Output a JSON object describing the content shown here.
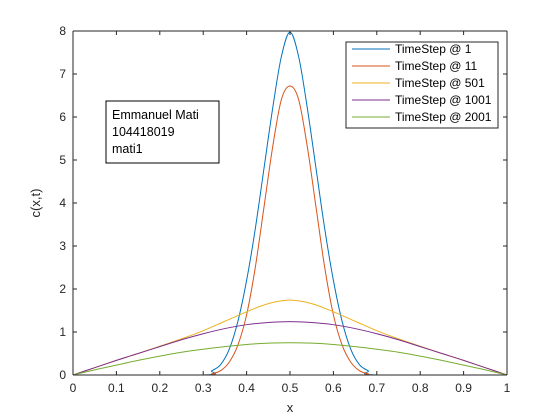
{
  "chart_data": {
    "type": "line",
    "title": "",
    "xlabel": "x",
    "ylabel": "c(x,t)",
    "xlim": [
      0,
      1
    ],
    "ylim": [
      0,
      8
    ],
    "xticks": [
      0,
      0.1,
      0.2,
      0.3,
      0.4,
      0.5,
      0.6,
      0.7,
      0.8,
      0.9,
      1
    ],
    "xtick_labels": [
      "0",
      "0.1",
      "0.2",
      "0.3",
      "0.4",
      "0.5",
      "0.6",
      "0.7",
      "0.8",
      "0.9",
      "1"
    ],
    "yticks": [
      0,
      1,
      2,
      3,
      4,
      5,
      6,
      7,
      8
    ],
    "ytick_labels": [
      "0",
      "1",
      "2",
      "3",
      "4",
      "5",
      "6",
      "7",
      "8"
    ],
    "grid": false,
    "legend_position": "top-right",
    "annotation": {
      "lines": [
        "Emmanuel Mati",
        "104418019",
        "mati1"
      ],
      "position": "upper-left"
    },
    "series": [
      {
        "name": "TimeStep @ 1",
        "color": "#0072BD",
        "x": [
          0,
          0.3,
          0.32,
          0.34,
          0.36,
          0.38,
          0.4,
          0.42,
          0.44,
          0.46,
          0.48,
          0.5,
          0.52,
          0.54,
          0.56,
          0.58,
          0.6,
          0.62,
          0.64,
          0.66,
          0.68,
          0.7,
          1
        ],
        "y": [
          0,
          0,
          0.1,
          0.24,
          0.6,
          1.25,
          2.2,
          3.4,
          4.8,
          6.2,
          7.4,
          7.97,
          7.4,
          6.2,
          4.8,
          3.4,
          2.2,
          1.25,
          0.6,
          0.24,
          0.1,
          0,
          0
        ]
      },
      {
        "name": "TimeStep @ 11",
        "color": "#D95319",
        "x": [
          0,
          0.3,
          0.32,
          0.34,
          0.36,
          0.38,
          0.4,
          0.42,
          0.44,
          0.46,
          0.48,
          0.5,
          0.52,
          0.54,
          0.56,
          0.58,
          0.6,
          0.62,
          0.64,
          0.66,
          0.68,
          0.7,
          1
        ],
        "y": [
          0,
          0,
          0.03,
          0.1,
          0.3,
          0.7,
          1.4,
          2.5,
          3.9,
          5.3,
          6.4,
          6.72,
          6.4,
          5.3,
          3.9,
          2.5,
          1.4,
          0.7,
          0.3,
          0.1,
          0.03,
          0,
          0
        ]
      },
      {
        "name": "TimeStep @ 501",
        "color": "#EDB120",
        "x": [
          0,
          0.05,
          0.1,
          0.15,
          0.2,
          0.25,
          0.3,
          0.35,
          0.4,
          0.45,
          0.5,
          0.55,
          0.6,
          0.65,
          0.7,
          0.75,
          0.8,
          0.85,
          0.9,
          0.95,
          1
        ],
        "y": [
          0,
          0.17,
          0.34,
          0.5,
          0.67,
          0.84,
          1.03,
          1.25,
          1.47,
          1.66,
          1.74,
          1.66,
          1.47,
          1.25,
          1.03,
          0.84,
          0.67,
          0.5,
          0.34,
          0.17,
          0
        ]
      },
      {
        "name": "TimeStep @ 1001",
        "color": "#7E2F8E",
        "x": [
          0,
          0.05,
          0.1,
          0.15,
          0.2,
          0.25,
          0.3,
          0.35,
          0.4,
          0.45,
          0.5,
          0.55,
          0.6,
          0.65,
          0.7,
          0.75,
          0.8,
          0.85,
          0.9,
          0.95,
          1
        ],
        "y": [
          0,
          0.17,
          0.34,
          0.5,
          0.66,
          0.82,
          0.96,
          1.08,
          1.17,
          1.22,
          1.24,
          1.22,
          1.17,
          1.08,
          0.96,
          0.82,
          0.66,
          0.5,
          0.34,
          0.17,
          0
        ]
      },
      {
        "name": "TimeStep @ 2001",
        "color": "#77AC30",
        "x": [
          0,
          0.05,
          0.1,
          0.15,
          0.2,
          0.25,
          0.3,
          0.35,
          0.4,
          0.45,
          0.5,
          0.55,
          0.6,
          0.65,
          0.7,
          0.75,
          0.8,
          0.85,
          0.9,
          0.95,
          1
        ],
        "y": [
          0,
          0.12,
          0.23,
          0.34,
          0.44,
          0.53,
          0.6,
          0.66,
          0.71,
          0.74,
          0.75,
          0.74,
          0.71,
          0.66,
          0.6,
          0.53,
          0.44,
          0.34,
          0.23,
          0.12,
          0
        ]
      }
    ]
  }
}
